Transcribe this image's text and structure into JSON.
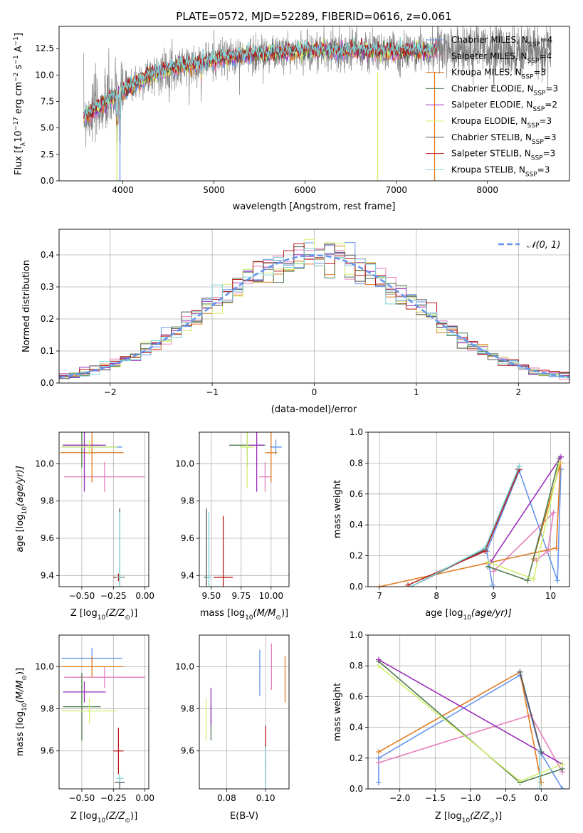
{
  "figure": {
    "colors": {
      "chab_miles": "#6495ed",
      "salp_miles": "#e57fbd",
      "krou_miles": "#e07b22",
      "chab_elodie": "#4f7a4f",
      "salp_elodie": "#9b30b9",
      "krou_elodie": "#d2f06e",
      "chab_stelib": "#555555",
      "salp_stelib": "#bb1818",
      "krou_stelib": "#7fd3d8",
      "gauss": "#6495ed",
      "spectrum": "#808080",
      "grid": "#b0b0b0"
    }
  },
  "chart_data": [
    {
      "id": "spectrum",
      "type": "line",
      "title": "PLATE=0572, MJD=52289, FIBERID=0616, z=0.061",
      "xlabel": "wavelength [Angstrom, rest frame]",
      "ylabel": "Flux [f",
      "ylabel_sub": "λ",
      "ylabel_rest": "10",
      "ylabel_sup1": "−17",
      "ylabel_mid": " erg cm",
      "ylabel_sup2": "−2",
      "ylabel_mid2": " s",
      "ylabel_sup3": "−1",
      "ylabel_end": " A",
      "ylabel_sup4": "−1",
      "ylabel_close": "]",
      "xlim": [
        3300,
        8900
      ],
      "ylim": [
        0,
        14.6
      ],
      "xticks": [
        "4000",
        "5000",
        "6000",
        "7000",
        "8000"
      ],
      "xtick_values": [
        4000,
        5000,
        6000,
        7000,
        8000
      ],
      "yticks": [
        "0.0",
        "2.5",
        "5.0",
        "7.5",
        "10.0",
        "12.5"
      ],
      "ytick_values": [
        0,
        2.5,
        5,
        7.5,
        10,
        12.5
      ],
      "grid": false,
      "legend_position": "top-right",
      "continuum": [
        [
          3600,
          6.2
        ],
        [
          3800,
          7.3
        ],
        [
          3950,
          8.2
        ],
        [
          4100,
          9.0
        ],
        [
          4300,
          10.0
        ],
        [
          4600,
          10.8
        ],
        [
          4900,
          11.3
        ],
        [
          5200,
          11.7
        ],
        [
          5600,
          12.1
        ],
        [
          6000,
          12.3
        ],
        [
          6500,
          12.3
        ],
        [
          7000,
          12.2
        ],
        [
          7400,
          12.3
        ]
      ],
      "data_extent": [
        3570,
        8700
      ],
      "series": [
        {
          "name": "Chabrier MILES",
          "nssp": "4",
          "color_key": "chab_miles"
        },
        {
          "name": "Salpeter MILES",
          "nssp": "4",
          "color_key": "salp_miles"
        },
        {
          "name": "Kroupa MILES",
          "nssp": "3",
          "color_key": "krou_miles"
        },
        {
          "name": "Chabrier ELODIE",
          "nssp": "3",
          "color_key": "chab_elodie"
        },
        {
          "name": "Salpeter ELODIE",
          "nssp": "2",
          "color_key": "salp_elodie"
        },
        {
          "name": "Kroupa ELODIE",
          "nssp": "3",
          "color_key": "krou_elodie"
        },
        {
          "name": "Chabrier STELIB",
          "nssp": "3",
          "color_key": "chab_stelib"
        },
        {
          "name": "Salpeter STELIB",
          "nssp": "3",
          "color_key": "salp_stelib"
        },
        {
          "name": "Kroupa STELIB",
          "nssp": "3",
          "color_key": "krou_stelib"
        }
      ],
      "nssp_label": "N",
      "nssp_sub": "SSP",
      "features": [
        {
          "x": 3935,
          "y": 0,
          "series": "krou_elodie"
        },
        {
          "x": 3968,
          "y": 0,
          "series": "chab_miles"
        },
        {
          "x": 6795,
          "y": 0,
          "series": "krou_elodie"
        },
        {
          "x": 7420,
          "y": 0,
          "series": "krou_miles"
        }
      ]
    },
    {
      "id": "residuals",
      "type": "step",
      "xlabel": "(data-model)/error",
      "ylabel": "Normed distribution",
      "xlim": [
        -2.5,
        2.5
      ],
      "ylim": [
        0,
        0.48
      ],
      "xticks": [
        "−2",
        "−1",
        "0",
        "1",
        "2"
      ],
      "xtick_values": [
        -2,
        -1,
        0,
        1,
        2
      ],
      "yticks": [
        "0.0",
        "0.1",
        "0.2",
        "0.3",
        "0.4"
      ],
      "ytick_values": [
        0,
        0.1,
        0.2,
        0.3,
        0.4
      ],
      "grid": true,
      "legend_position": "top-right",
      "gauss_label": "𝒩(0, 1)",
      "bin_width": 0.1
    },
    {
      "id": "age_vs_Z",
      "type": "errorbar",
      "xlabel": "Z [log",
      "xlabel_sub": "10",
      "xlabel_rest": "(Z/Z",
      "xlabel_sub2": "⊙",
      "xlabel_end": ")]",
      "ylabel": "age  [log",
      "ylabel_sub": "10",
      "ylabel_end": "(age/yr)]",
      "xlim": [
        -0.68,
        0.03
      ],
      "ylim": [
        9.34,
        10.17
      ],
      "xticks": [
        "−0.50",
        "−0.25",
        "0.00"
      ],
      "xtick_values": [
        -0.5,
        -0.25,
        0
      ],
      "yticks": [
        "9.4",
        "9.6",
        "9.8",
        "10.0"
      ],
      "ytick_values": [
        9.4,
        9.6,
        9.8,
        10.0
      ],
      "grid": true,
      "points": [
        {
          "x": -0.42,
          "y": 10.09,
          "xerr": 0.24,
          "yerr": 0.04,
          "c": "chab_miles"
        },
        {
          "x": -0.32,
          "y": 9.93,
          "xerr": 0.32,
          "yerr": 0.08,
          "c": "salp_miles"
        },
        {
          "x": -0.42,
          "y": 10.06,
          "xerr": 0.25,
          "yerr": 0.16,
          "c": "krou_miles"
        },
        {
          "x": -0.5,
          "y": 10.1,
          "xerr": 0.15,
          "yerr": 0.12,
          "c": "chab_elodie"
        },
        {
          "x": -0.48,
          "y": 10.1,
          "xerr": 0.17,
          "yerr": 0.25,
          "c": "salp_elodie"
        },
        {
          "x": -0.44,
          "y": 10.09,
          "xerr": 0.22,
          "yerr": 0.04,
          "c": "krou_elodie"
        },
        {
          "x": -0.2,
          "y": 9.39,
          "xerr": 0.04,
          "yerr": 0.37,
          "c": "chab_stelib"
        },
        {
          "x": -0.21,
          "y": 9.39,
          "xerr": 0.04,
          "yerr": 0.02,
          "c": "salp_stelib"
        },
        {
          "x": -0.2,
          "y": 9.39,
          "xerr": 0.03,
          "yerr": 0.35,
          "c": "krou_stelib"
        }
      ]
    },
    {
      "id": "age_vs_mass",
      "type": "errorbar",
      "xlabel": "mass [log",
      "xlabel_sub": "10",
      "xlabel_rest": "(M/M",
      "xlabel_sub2": "⊙",
      "xlabel_end": ")]",
      "xlim": [
        9.4,
        10.15
      ],
      "ylim": [
        9.34,
        10.17
      ],
      "xticks": [
        "9.50",
        "9.75",
        "10.00"
      ],
      "xtick_values": [
        9.5,
        9.75,
        10.0
      ],
      "yticks": [
        "9.4",
        "9.6",
        "9.8",
        "10.0"
      ],
      "ytick_values": [
        9.4,
        9.6,
        9.8,
        10.0
      ],
      "grid": true,
      "points": [
        {
          "x": 10.04,
          "y": 10.09,
          "xerr": 0.05,
          "yerr": 0.04,
          "c": "chab_miles"
        },
        {
          "x": 9.95,
          "y": 9.93,
          "xerr": 0.05,
          "yerr": 0.08,
          "c": "salp_miles"
        },
        {
          "x": 10.0,
          "y": 10.06,
          "xerr": 0.05,
          "yerr": 0.16,
          "c": "krou_miles"
        },
        {
          "x": 9.8,
          "y": 10.1,
          "xerr": 0.15,
          "yerr": 0.12,
          "c": "chab_elodie"
        },
        {
          "x": 9.88,
          "y": 10.1,
          "xerr": 0.06,
          "yerr": 0.25,
          "c": "salp_elodie"
        },
        {
          "x": 9.8,
          "y": 10.09,
          "xerr": 0.06,
          "yerr": 0.22,
          "c": "krou_elodie"
        },
        {
          "x": 9.46,
          "y": 9.39,
          "xerr": 0.02,
          "yerr": 0.37,
          "c": "chab_stelib"
        },
        {
          "x": 9.6,
          "y": 9.39,
          "xerr": 0.08,
          "yerr": 0.33,
          "c": "salp_stelib"
        },
        {
          "x": 9.48,
          "y": 9.39,
          "xerr": 0.02,
          "yerr": 0.35,
          "c": "krou_stelib"
        }
      ]
    },
    {
      "id": "mass_weight_vs_age",
      "type": "line",
      "xlabel": "age  [log",
      "xlabel_sub": "10",
      "xlabel_end": "(age/yr)]",
      "ylabel": "mass weight",
      "xlim": [
        6.8,
        10.33
      ],
      "ylim": [
        0,
        1.0
      ],
      "xticks": [
        "7",
        "8",
        "9",
        "10"
      ],
      "xtick_values": [
        7,
        8,
        9,
        10
      ],
      "yticks": [
        "0.0",
        "0.2",
        "0.4",
        "0.6",
        "0.8",
        "1.0"
      ],
      "ytick_values": [
        0,
        0.2,
        0.4,
        0.6,
        0.8,
        1.0
      ],
      "grid": true,
      "lines": [
        {
          "c": "chab_miles",
          "pts": [
            [
              8.98,
              0.01
            ],
            [
              8.88,
              0.23
            ],
            [
              9.45,
              0.75
            ],
            [
              10.12,
              0.04
            ],
            [
              10.18,
              0.76
            ]
          ]
        },
        {
          "c": "salp_miles",
          "pts": [
            [
              9.0,
              0.1
            ],
            [
              10.05,
              0.48
            ],
            [
              9.95,
              0.23
            ],
            [
              9.75,
              0.17
            ]
          ]
        },
        {
          "c": "krou_miles",
          "pts": [
            [
              7.0,
              0.0
            ],
            [
              10.1,
              0.25
            ],
            [
              10.17,
              0.8
            ],
            [
              9.7,
              0.18
            ]
          ]
        },
        {
          "c": "chab_elodie",
          "pts": [
            [
              8.9,
              0.13
            ],
            [
              9.6,
              0.04
            ],
            [
              10.15,
              0.83
            ]
          ]
        },
        {
          "c": "salp_elodie",
          "pts": [
            [
              8.95,
              0.16
            ],
            [
              10.18,
              0.84
            ]
          ]
        },
        {
          "c": "krou_elodie",
          "pts": [
            [
              8.9,
              0.16
            ],
            [
              9.7,
              0.05
            ],
            [
              10.15,
              0.8
            ]
          ]
        },
        {
          "c": "chab_stelib",
          "pts": [
            [
              7.55,
              0.0
            ],
            [
              8.85,
              0.24
            ],
            [
              9.43,
              0.76
            ]
          ]
        },
        {
          "c": "salp_stelib",
          "pts": [
            [
              7.5,
              0.01
            ],
            [
              8.85,
              0.23
            ],
            [
              9.45,
              0.76
            ]
          ]
        },
        {
          "c": "krou_stelib",
          "pts": [
            [
              7.55,
              0.0
            ],
            [
              8.85,
              0.25
            ],
            [
              9.45,
              0.78
            ]
          ]
        }
      ]
    },
    {
      "id": "mass_vs_Z",
      "type": "errorbar",
      "xlabel": "Z [log",
      "xlabel_sub": "10",
      "xlabel_rest": "(Z/Z",
      "xlabel_sub2": "⊙",
      "xlabel_end": ")]",
      "ylabel": "mass [log",
      "ylabel_sub": "10",
      "ylabel_rest": "(M/M",
      "ylabel_sub2": "⊙",
      "ylabel_end": ")]",
      "xlim": [
        -0.68,
        0.03
      ],
      "ylim": [
        9.42,
        10.15
      ],
      "xticks": [
        "−0.50",
        "−0.25",
        "0.00"
      ],
      "xtick_values": [
        -0.5,
        -0.25,
        0
      ],
      "yticks": [
        "9.6",
        "9.8",
        "10.0"
      ],
      "ytick_values": [
        9.6,
        9.8,
        10.0
      ],
      "grid": true,
      "points": [
        {
          "x": -0.42,
          "y": 10.04,
          "xerr": 0.24,
          "yerr": 0.05,
          "c": "chab_miles"
        },
        {
          "x": -0.32,
          "y": 9.95,
          "xerr": 0.32,
          "yerr": 0.05,
          "c": "salp_miles"
        },
        {
          "x": -0.42,
          "y": 10.0,
          "xerr": 0.25,
          "yerr": 0.05,
          "c": "krou_miles"
        },
        {
          "x": -0.5,
          "y": 9.81,
          "xerr": 0.15,
          "yerr": 0.16,
          "c": "chab_elodie"
        },
        {
          "x": -0.48,
          "y": 9.88,
          "xerr": 0.17,
          "yerr": 0.05,
          "c": "salp_elodie"
        },
        {
          "x": -0.44,
          "y": 9.79,
          "xerr": 0.22,
          "yerr": 0.06,
          "c": "krou_elodie"
        },
        {
          "x": -0.2,
          "y": 9.45,
          "xerr": 0.04,
          "yerr": 0.03,
          "c": "chab_stelib"
        },
        {
          "x": -0.21,
          "y": 9.6,
          "xerr": 0.04,
          "yerr": 0.11,
          "c": "salp_stelib"
        },
        {
          "x": -0.2,
          "y": 9.47,
          "xerr": 0.03,
          "yerr": 0.02,
          "c": "krou_stelib"
        }
      ]
    },
    {
      "id": "mass_vs_ebv",
      "type": "errorbar",
      "xlabel": "E(B-V)",
      "xlim": [
        0.066,
        0.112
      ],
      "ylim": [
        9.42,
        10.15
      ],
      "xticks": [
        "0.08",
        "0.10"
      ],
      "xtick_values": [
        0.08,
        0.1
      ],
      "yticks": [
        "9.6",
        "9.8",
        "10.0"
      ],
      "ytick_values": [
        9.6,
        9.8,
        10.0
      ],
      "grid": true,
      "points": [
        {
          "x": 0.097,
          "y": 9.97,
          "xerr": 0,
          "yerr": 0.11,
          "c": "chab_miles"
        },
        {
          "x": 0.103,
          "y": 10.0,
          "xerr": 0,
          "yerr": 0.11,
          "c": "salp_miles"
        },
        {
          "x": 0.11,
          "y": 9.94,
          "xerr": 0,
          "yerr": 0.11,
          "c": "krou_miles"
        },
        {
          "x": 0.072,
          "y": 9.74,
          "xerr": 0,
          "yerr": 0.09,
          "c": "chab_elodie"
        },
        {
          "x": 0.072,
          "y": 9.81,
          "xerr": 0,
          "yerr": 0.09,
          "c": "salp_elodie"
        },
        {
          "x": 0.0695,
          "y": 9.75,
          "xerr": 0,
          "yerr": 0.1,
          "c": "krou_elodie"
        },
        {
          "x": 0.1,
          "y": 9.5,
          "xerr": 0,
          "yerr": 0.06,
          "c": "chab_stelib"
        },
        {
          "x": 0.1,
          "y": 9.62,
          "xerr": 0,
          "yerr": 0.1,
          "c": "salp_stelib"
        },
        {
          "x": 0.1,
          "y": 9.52,
          "xerr": 0,
          "yerr": 0.1,
          "c": "krou_stelib"
        }
      ]
    },
    {
      "id": "mass_weight_vs_Z",
      "type": "line",
      "xlabel": "Z [log",
      "xlabel_sub": "10",
      "xlabel_rest": "(Z/Z",
      "xlabel_sub2": "⊙",
      "xlabel_end": ")]",
      "ylabel": "mass weight",
      "xlim": [
        -2.45,
        0.4
      ],
      "ylim": [
        0,
        1.0
      ],
      "xticks": [
        "−2.0",
        "−1.5",
        "−1.0",
        "−0.5",
        "0.0"
      ],
      "xtick_values": [
        -2,
        -1.5,
        -1,
        -0.5,
        0
      ],
      "yticks": [
        "0.0",
        "0.2",
        "0.4",
        "0.6",
        "0.8",
        "1.0"
      ],
      "ytick_values": [
        0,
        0.2,
        0.4,
        0.6,
        0.8,
        1.0
      ],
      "grid": true,
      "lines": [
        {
          "c": "chab_miles",
          "pts": [
            [
              -2.3,
              0.04
            ],
            [
              -2.3,
              0.2
            ],
            [
              -0.3,
              0.74
            ],
            [
              0.0,
              0.23
            ],
            [
              0.3,
              0.0
            ]
          ]
        },
        {
          "c": "salp_miles",
          "pts": [
            [
              -2.3,
              0.17
            ],
            [
              -0.15,
              0.48
            ],
            [
              0.3,
              0.11
            ]
          ]
        },
        {
          "c": "krou_miles",
          "pts": [
            [
              -2.3,
              0.24
            ],
            [
              -0.3,
              0.76
            ],
            [
              0.0,
              0.04
            ]
          ]
        },
        {
          "c": "chab_elodie",
          "pts": [
            [
              -2.3,
              0.83
            ],
            [
              -0.3,
              0.04
            ],
            [
              0.3,
              0.13
            ]
          ]
        },
        {
          "c": "salp_elodie",
          "pts": [
            [
              -2.3,
              0.84
            ],
            [
              0.3,
              0.16
            ]
          ]
        },
        {
          "c": "krou_elodie",
          "pts": [
            [
              -2.3,
              0.8
            ],
            [
              -0.3,
              0.05
            ],
            [
              0.3,
              0.16
            ]
          ]
        },
        {
          "c": "chab_stelib",
          "pts": [
            [
              -0.3,
              0.76
            ],
            [
              0.0,
              0.24
            ]
          ]
        },
        {
          "c": "krou_stelib",
          "pts": [
            [
              -0.02,
              0.0
            ],
            [
              -0.02,
              0.25
            ]
          ]
        }
      ]
    }
  ]
}
